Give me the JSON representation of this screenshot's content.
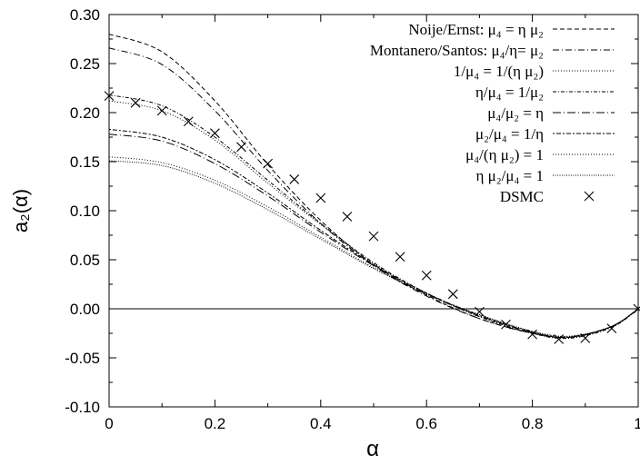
{
  "chart_data": {
    "type": "line",
    "xlabel": "α",
    "ylabel": "a₂(α)",
    "xlim": [
      0,
      1
    ],
    "ylim": [
      -0.1,
      0.3
    ],
    "xticks": [
      "0",
      "0.2",
      "0.4",
      "0.6",
      "0.8",
      "1"
    ],
    "xtick_values": [
      0,
      0.2,
      0.4,
      0.6,
      0.8,
      1
    ],
    "yticks": [
      "-0.10",
      "-0.05",
      "0.00",
      "0.05",
      "0.10",
      "0.15",
      "0.20",
      "0.25",
      "0.30"
    ],
    "ytick_values": [
      -0.1,
      -0.05,
      0.0,
      0.05,
      0.1,
      0.15,
      0.2,
      0.25,
      0.3
    ],
    "zero_line": true,
    "legend_position": "top-right",
    "series": [
      {
        "name": "Noije/Ernst: μ₄ = η μ₂",
        "style": "dashed",
        "x": [
          0,
          0.1,
          0.2,
          0.3,
          0.4,
          0.5,
          0.6,
          0.7,
          0.8,
          0.87,
          0.95,
          1
        ],
        "y": [
          0.28,
          0.262,
          0.212,
          0.147,
          0.09,
          0.045,
          0.014,
          -0.01,
          -0.025,
          -0.029,
          -0.018,
          0
        ]
      },
      {
        "name": "Montanero/Santos: μ₄/η= μ₂",
        "style": "dash-dot",
        "x": [
          0,
          0.1,
          0.2,
          0.3,
          0.4,
          0.5,
          0.6,
          0.7,
          0.8,
          0.87,
          0.95,
          1
        ],
        "y": [
          0.266,
          0.249,
          0.202,
          0.141,
          0.087,
          0.044,
          0.013,
          -0.01,
          -0.025,
          -0.029,
          -0.018,
          0
        ]
      },
      {
        "name": "1/μ₄ = 1/(η μ₂)",
        "style": "dotted",
        "x": [
          0,
          0.1,
          0.2,
          0.3,
          0.4,
          0.5,
          0.6,
          0.7,
          0.8,
          0.87,
          0.95,
          1
        ],
        "y": [
          0.212,
          0.202,
          0.172,
          0.128,
          0.086,
          0.046,
          0.016,
          -0.008,
          -0.025,
          -0.03,
          -0.019,
          0
        ]
      },
      {
        "name": "η/μ₄ = 1/μ₂",
        "style": "dash-dot-fine",
        "x": [
          0,
          0.1,
          0.2,
          0.3,
          0.4,
          0.5,
          0.6,
          0.7,
          0.8,
          0.87,
          0.95,
          1
        ],
        "y": [
          0.218,
          0.207,
          0.175,
          0.131,
          0.087,
          0.047,
          0.016,
          -0.008,
          -0.025,
          -0.03,
          -0.019,
          0
        ]
      },
      {
        "name": "μ₄/μ₂ = η",
        "style": "dash-dot-long",
        "x": [
          0,
          0.1,
          0.2,
          0.3,
          0.4,
          0.5,
          0.6,
          0.7,
          0.8,
          0.87,
          0.95,
          1
        ],
        "y": [
          0.178,
          0.171,
          0.148,
          0.115,
          0.078,
          0.044,
          0.015,
          -0.007,
          -0.024,
          -0.029,
          -0.018,
          0
        ]
      },
      {
        "name": "μ₂/μ₄ = 1/η",
        "style": "dotted-dash",
        "x": [
          0,
          0.1,
          0.2,
          0.3,
          0.4,
          0.5,
          0.6,
          0.7,
          0.8,
          0.87,
          0.95,
          1
        ],
        "y": [
          0.183,
          0.175,
          0.152,
          0.118,
          0.08,
          0.045,
          0.016,
          -0.007,
          -0.024,
          -0.029,
          -0.018,
          0
        ]
      },
      {
        "name": "μ₄/(η μ₂) = 1",
        "style": "dotted",
        "x": [
          0,
          0.1,
          0.2,
          0.3,
          0.4,
          0.5,
          0.6,
          0.7,
          0.8,
          0.87,
          0.95,
          1
        ],
        "y": [
          0.155,
          0.149,
          0.131,
          0.104,
          0.073,
          0.042,
          0.015,
          -0.006,
          -0.023,
          -0.028,
          -0.018,
          0
        ]
      },
      {
        "name": "η μ₂/μ₄ = 1",
        "style": "dotted-fine",
        "x": [
          0,
          0.1,
          0.2,
          0.3,
          0.4,
          0.5,
          0.6,
          0.7,
          0.8,
          0.87,
          0.95,
          1
        ],
        "y": [
          0.151,
          0.146,
          0.128,
          0.101,
          0.071,
          0.041,
          0.015,
          -0.006,
          -0.023,
          -0.028,
          -0.018,
          0
        ]
      },
      {
        "name": "DSMC",
        "style": "markers",
        "x": [
          0,
          0.05,
          0.1,
          0.15,
          0.2,
          0.25,
          0.3,
          0.35,
          0.4,
          0.45,
          0.5,
          0.55,
          0.6,
          0.65,
          0.7,
          0.75,
          0.8,
          0.85,
          0.9,
          0.95,
          1
        ],
        "y": [
          0.217,
          0.21,
          0.202,
          0.191,
          0.179,
          0.165,
          0.148,
          0.132,
          0.113,
          0.094,
          0.074,
          0.053,
          0.034,
          0.015,
          -0.003,
          -0.016,
          -0.026,
          -0.031,
          -0.03,
          -0.02,
          0.0
        ]
      }
    ]
  }
}
